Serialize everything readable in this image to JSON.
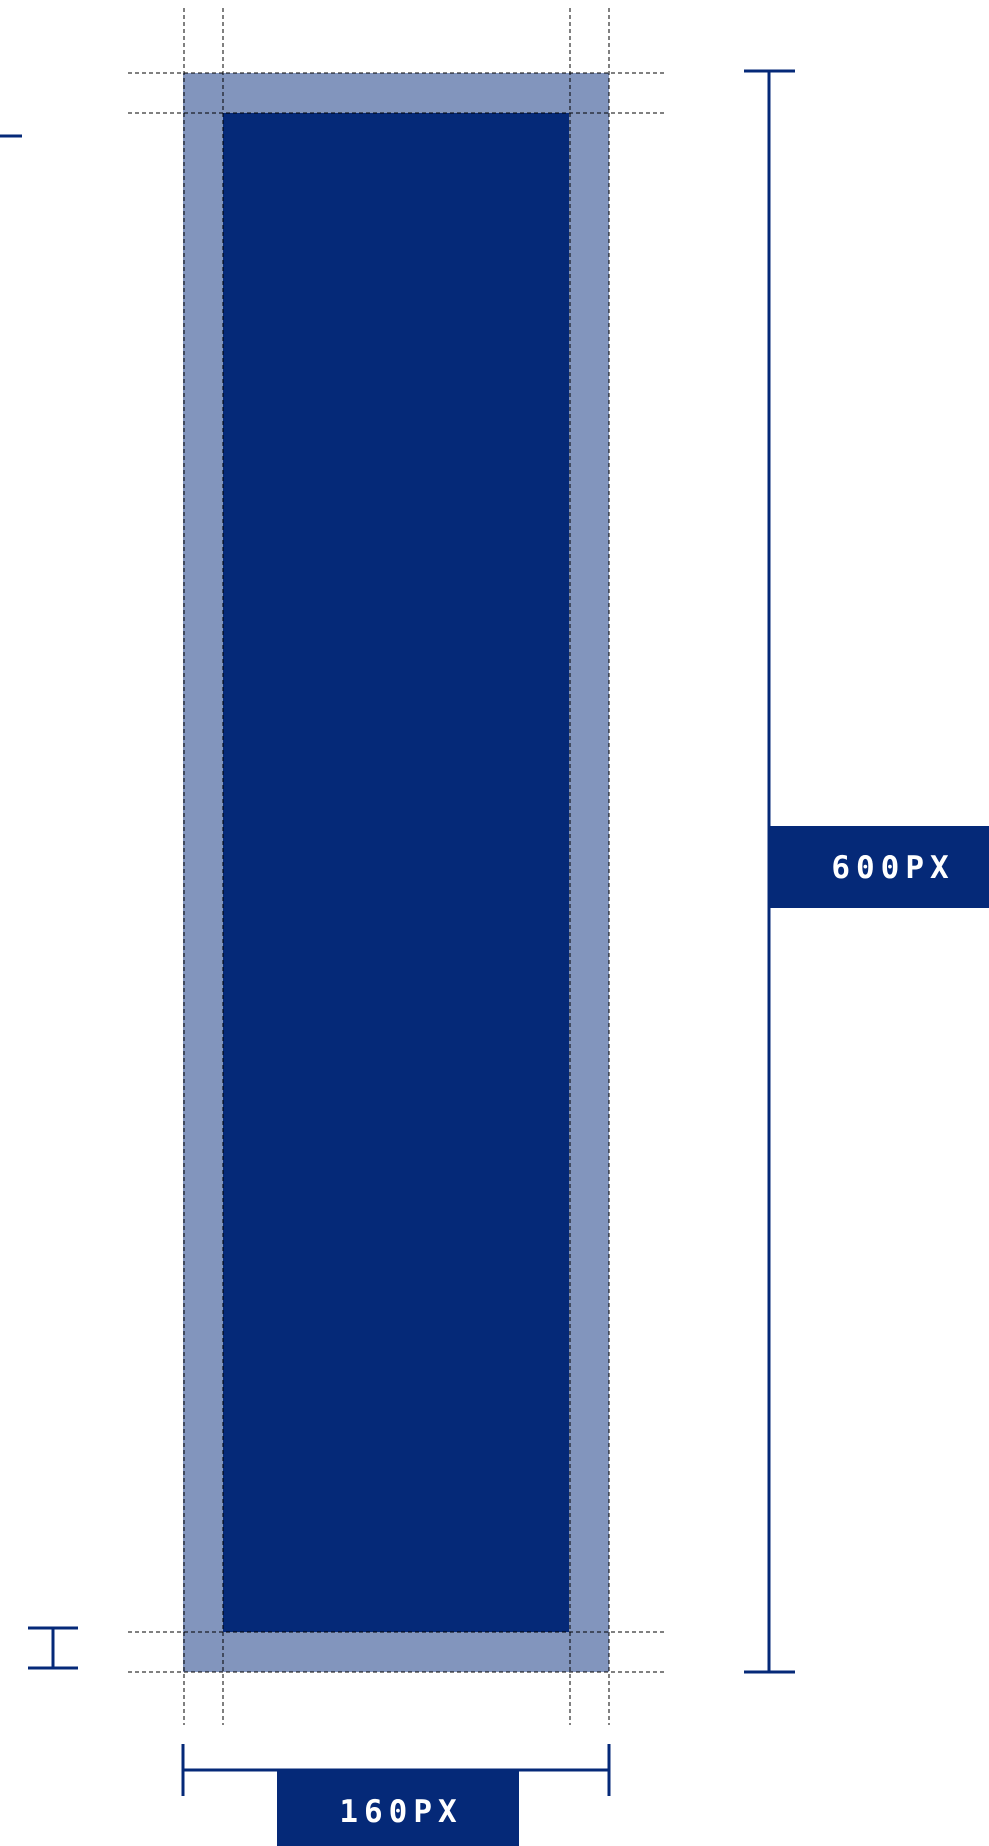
{
  "colors": {
    "inner": "#052978",
    "border": "#8295BD",
    "line": "#052978",
    "guide": "#000000",
    "label_text": "#ffffff",
    "background": "#ffffff"
  },
  "labels": {
    "height": "600PX",
    "width": "160PX"
  }
}
